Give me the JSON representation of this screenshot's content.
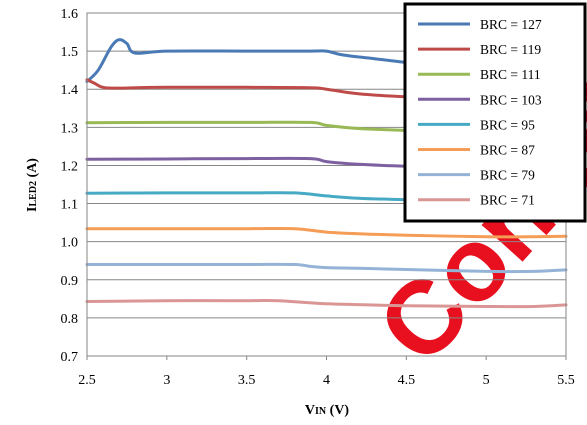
{
  "chart_data": {
    "type": "line",
    "xlabel": {
      "main": "V",
      "sub": "IN",
      "unit": "(V)"
    },
    "ylabel": {
      "main": "I",
      "sub": "LED2",
      "unit": "(A)"
    },
    "xlim": [
      2.5,
      5.5
    ],
    "ylim": [
      0.7,
      1.6
    ],
    "xticks": [
      "2.5",
      "3",
      "3.5",
      "4",
      "4.5",
      "5",
      "5.5"
    ],
    "yticks": [
      "0.7",
      "0.8",
      "0.9",
      "1.0",
      "1.1",
      "1.2",
      "1.3",
      "1.4",
      "1.5",
      "1.6"
    ],
    "grid": "horizontal",
    "legend_position": "top-right",
    "series": [
      {
        "name": "BRC = 127",
        "color": "#4a7ab5",
        "x": [
          2.5,
          2.57,
          2.65,
          2.7,
          2.75,
          2.8,
          3.0,
          3.5,
          3.9,
          4.0,
          4.1,
          4.3,
          4.5
        ],
        "y": [
          1.42,
          1.45,
          1.51,
          1.53,
          1.52,
          1.495,
          1.5,
          1.5,
          1.5,
          1.5,
          1.49,
          1.48,
          1.47
        ]
      },
      {
        "name": "BRC = 119",
        "color": "#be4b48",
        "x": [
          2.5,
          2.55,
          2.6,
          2.7,
          3.0,
          3.5,
          3.9,
          4.0,
          4.2,
          4.5,
          4.7
        ],
        "y": [
          1.425,
          1.415,
          1.405,
          1.403,
          1.405,
          1.405,
          1.404,
          1.4,
          1.388,
          1.38,
          1.378
        ]
      },
      {
        "name": "BRC = 111",
        "color": "#98b954",
        "x": [
          2.5,
          3.0,
          3.5,
          3.9,
          4.0,
          4.2,
          4.5,
          4.7
        ],
        "y": [
          1.312,
          1.313,
          1.313,
          1.313,
          1.305,
          1.297,
          1.292,
          1.29
        ]
      },
      {
        "name": "BRC = 103",
        "color": "#7d60a0",
        "x": [
          2.5,
          3.0,
          3.5,
          3.9,
          4.0,
          4.2,
          4.5,
          4.7
        ],
        "y": [
          1.216,
          1.217,
          1.218,
          1.218,
          1.21,
          1.203,
          1.198,
          1.196
        ]
      },
      {
        "name": "BRC = 95",
        "color": "#46aac5",
        "x": [
          2.5,
          3.0,
          3.5,
          3.8,
          4.0,
          4.2,
          4.5,
          4.7
        ],
        "y": [
          1.127,
          1.128,
          1.128,
          1.128,
          1.12,
          1.114,
          1.11,
          1.108
        ]
      },
      {
        "name": "BRC = 87",
        "color": "#f59d56",
        "x": [
          2.5,
          3.0,
          3.5,
          3.8,
          4.0,
          4.2,
          4.5,
          5.0,
          5.3,
          5.5
        ],
        "y": [
          1.034,
          1.034,
          1.034,
          1.034,
          1.025,
          1.021,
          1.017,
          1.013,
          1.013,
          1.014
        ]
      },
      {
        "name": "BRC = 79",
        "color": "#95b3d7",
        "x": [
          2.5,
          3.0,
          3.5,
          3.8,
          3.9,
          4.0,
          4.2,
          4.5,
          5.0,
          5.3,
          5.5
        ],
        "y": [
          0.94,
          0.94,
          0.94,
          0.94,
          0.935,
          0.932,
          0.93,
          0.927,
          0.922,
          0.922,
          0.926
        ]
      },
      {
        "name": "BRC = 71",
        "color": "#d99694",
        "x": [
          2.5,
          3.0,
          3.5,
          3.7,
          4.0,
          4.5,
          5.0,
          5.3,
          5.5
        ],
        "y": [
          0.843,
          0.845,
          0.845,
          0.845,
          0.837,
          0.832,
          0.83,
          0.83,
          0.834
        ]
      }
    ]
  },
  "watermark": {
    "text": "Confidential",
    "color": "#e8101e"
  }
}
